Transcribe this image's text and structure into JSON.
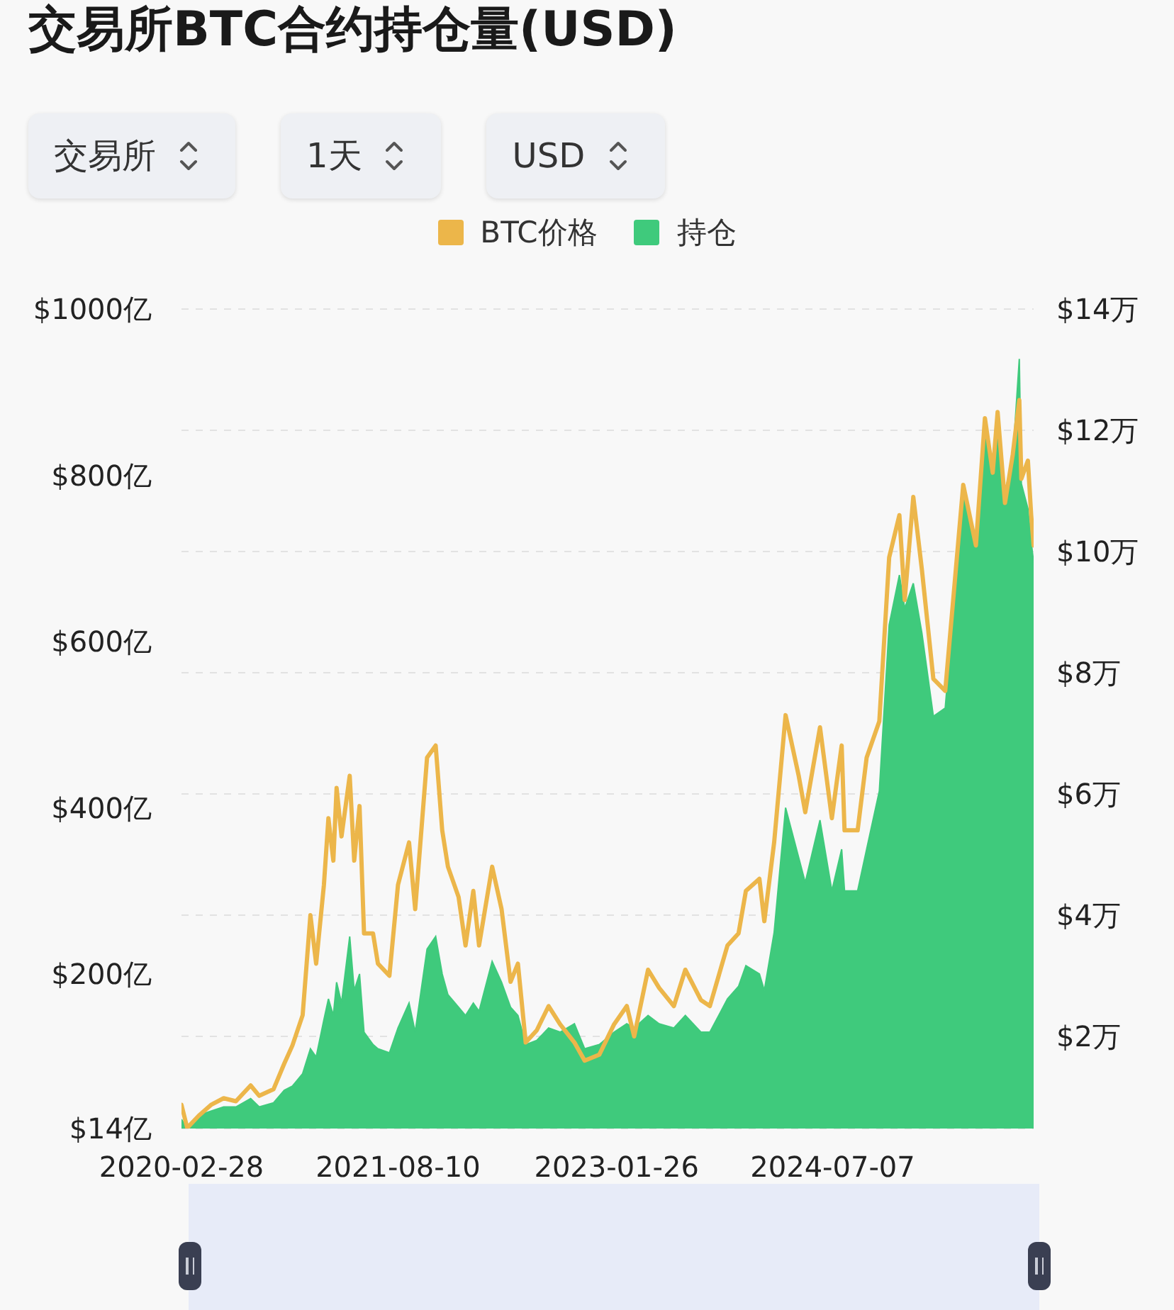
{
  "chart_data": {
    "type": "line",
    "title": "交易所BTC合约持仓量(USD)",
    "annotations": [
      "交易所",
      "1天",
      "USD"
    ],
    "x": [
      "2020-02-28",
      "2020-03-13",
      "2020-04-10",
      "2020-05-10",
      "2020-06-10",
      "2020-07-10",
      "2020-08-15",
      "2020-09-05",
      "2020-10-10",
      "2020-11-05",
      "2020-11-25",
      "2020-12-20",
      "2021-01-08",
      "2021-01-22",
      "2021-02-10",
      "2021-02-21",
      "2021-03-05",
      "2021-03-13",
      "2021-03-25",
      "2021-04-14",
      "2021-04-25",
      "2021-05-08",
      "2021-05-19",
      "2021-06-10",
      "2021-06-22",
      "2021-07-20",
      "2021-08-10",
      "2021-09-06",
      "2021-09-21",
      "2021-10-20",
      "2021-11-10",
      "2021-11-26",
      "2021-12-10",
      "2022-01-05",
      "2022-01-22",
      "2022-02-10",
      "2022-02-24",
      "2022-03-28",
      "2022-04-20",
      "2022-05-12",
      "2022-05-30",
      "2022-06-18",
      "2022-07-15",
      "2022-08-13",
      "2022-09-10",
      "2022-10-15",
      "2022-11-09",
      "2022-12-15",
      "2023-01-20",
      "2023-02-20",
      "2023-03-10",
      "2023-04-13",
      "2023-05-10",
      "2023-06-15",
      "2023-07-13",
      "2023-08-20",
      "2023-09-11",
      "2023-10-24",
      "2023-11-20",
      "2023-12-08",
      "2024-01-10",
      "2024-01-22",
      "2024-02-15",
      "2024-03-14",
      "2024-04-15",
      "2024-05-01",
      "2024-06-06",
      "2024-07-05",
      "2024-07-29",
      "2024-08-05",
      "2024-09-06",
      "2024-09-28",
      "2024-10-29",
      "2024-11-22",
      "2024-12-17",
      "2024-12-30",
      "2025-01-20",
      "2025-02-10",
      "2025-03-10",
      "2025-04-08",
      "2025-05-22",
      "2025-06-22",
      "2025-07-14",
      "2025-08-02",
      "2025-08-14",
      "2025-09-01",
      "2025-09-20",
      "2025-10-06",
      "2025-10-11",
      "2025-10-27",
      "2025-11-04",
      "2025-11-10"
    ],
    "series": [
      {
        "name": "BTC价格",
        "axis": "y2",
        "color": "#ecb64a",
        "values": [
          0.87,
          0.49,
          0.69,
          0.87,
          0.98,
          0.93,
          1.19,
          1.02,
          1.13,
          1.55,
          1.85,
          2.35,
          4.0,
          3.2,
          4.5,
          5.6,
          4.9,
          6.1,
          5.3,
          6.3,
          4.9,
          5.8,
          3.7,
          3.7,
          3.2,
          3.0,
          4.5,
          5.2,
          4.1,
          6.6,
          6.8,
          5.4,
          4.8,
          4.3,
          3.5,
          4.4,
          3.5,
          4.8,
          4.1,
          2.9,
          3.2,
          1.9,
          2.1,
          2.5,
          2.2,
          1.9,
          1.6,
          1.7,
          2.2,
          2.5,
          2.0,
          3.1,
          2.8,
          2.5,
          3.1,
          2.6,
          2.5,
          3.5,
          3.7,
          4.4,
          4.6,
          3.9,
          5.2,
          7.3,
          6.3,
          5.7,
          7.1,
          5.6,
          6.8,
          5.4,
          5.4,
          6.6,
          7.2,
          9.9,
          10.6,
          9.2,
          10.9,
          9.7,
          7.9,
          7.7,
          11.1,
          10.1,
          12.2,
          11.3,
          12.3,
          10.8,
          11.6,
          12.5,
          11.2,
          11.5,
          10.6,
          10.1
        ]
      },
      {
        "name": "持仓",
        "type": "area",
        "color": "#3fca7c",
        "values": [
          25,
          14,
          30,
          35,
          40,
          40,
          50,
          40,
          45,
          60,
          65,
          80,
          110,
          100,
          145,
          170,
          150,
          190,
          165,
          245,
          180,
          200,
          130,
          115,
          110,
          105,
          135,
          165,
          130,
          230,
          245,
          200,
          175,
          160,
          150,
          165,
          155,
          215,
          190,
          160,
          150,
          115,
          120,
          135,
          130,
          140,
          110,
          115,
          130,
          140,
          135,
          150,
          140,
          135,
          150,
          130,
          130,
          170,
          185,
          210,
          200,
          180,
          250,
          400,
          340,
          310,
          385,
          300,
          350,
          300,
          300,
          350,
          420,
          620,
          680,
          640,
          670,
          610,
          510,
          520,
          780,
          720,
          870,
          800,
          850,
          780,
          820,
          940,
          790,
          760,
          720,
          695
        ]
      }
    ],
    "xlim": [
      "2020-02-28",
      "2025-11-10"
    ],
    "xticks": [
      "2020-02-28",
      "2021-08-10",
      "2023-01-26",
      "2024-07-07"
    ],
    "ylim": [
      14,
      1000
    ],
    "yticks": [
      {
        "value": 14,
        "label": "$14亿"
      },
      {
        "value": 200,
        "label": "$200亿"
      },
      {
        "value": 400,
        "label": "$400亿"
      },
      {
        "value": 600,
        "label": "$600亿"
      },
      {
        "value": 800,
        "label": "$800亿"
      },
      {
        "value": 1000,
        "label": "$1000亿"
      }
    ],
    "y2lim": [
      0.48,
      14
    ],
    "y2ticks": [
      {
        "value": 2,
        "label": "$2万"
      },
      {
        "value": 4,
        "label": "$4万"
      },
      {
        "value": 6,
        "label": "$6万"
      },
      {
        "value": 8,
        "label": "$8万"
      },
      {
        "value": 10,
        "label": "$10万"
      },
      {
        "value": 12,
        "label": "$12万"
      },
      {
        "value": 14,
        "label": "$14万"
      }
    ],
    "grid": "y2",
    "legend": "top"
  }
}
